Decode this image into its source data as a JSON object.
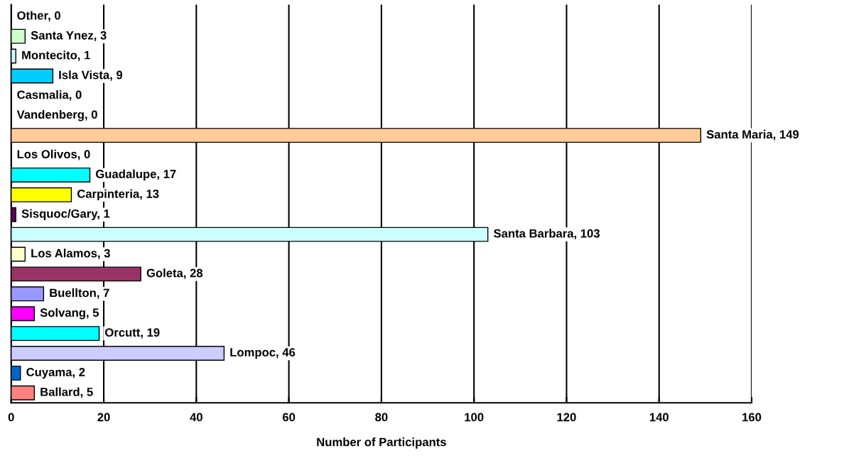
{
  "chart_data": {
    "type": "bar",
    "orientation": "horizontal",
    "xlabel": "Number of Participants",
    "categories": [
      null,
      null,
      null,
      null,
      null,
      null,
      null,
      null,
      null,
      null,
      null,
      null,
      null,
      null,
      null,
      null,
      null,
      null,
      null,
      null
    ],
    "values": [
      0,
      3,
      1,
      9,
      0,
      0,
      149,
      0,
      17,
      13,
      1,
      103,
      3,
      28,
      7,
      5,
      19,
      46,
      2,
      5
    ],
    "value_labels": [
      "Other, 0",
      "Santa Ynez, 3",
      "Montecito, 1",
      "Isla Vista, 9",
      "Casmalia, 0",
      "Vandenberg, 0",
      "Santa Maria, 149",
      "Los Olivos, 0",
      "Guadalupe, 17",
      "Carpinteria, 13",
      "Sisquoc/Gary, 1",
      "Santa Barbara, 103",
      "Los Alamos, 3",
      "Goleta, 28",
      "Buellton, 7",
      "Solvang, 5",
      "Orcutt, 19",
      "Lompoc, 46",
      "Cuyama, 2",
      "Ballard, 5"
    ],
    "colors": [
      null,
      "#ccffcc",
      "#ccffff",
      "#00ccff",
      null,
      null,
      "#ffcc99",
      null,
      "#00ffff",
      "#ffff00",
      "#660066",
      "#ccffff",
      "#ffffcc",
      "#993366",
      "#9999ff",
      "#ff00ff",
      "#00ffff",
      "#ccccff",
      "#0066cc",
      "#ff8080"
    ],
    "xlim": [
      0,
      160
    ],
    "xticks": [
      0,
      20,
      40,
      60,
      80,
      100,
      120,
      140,
      160
    ],
    "grid": "x"
  }
}
